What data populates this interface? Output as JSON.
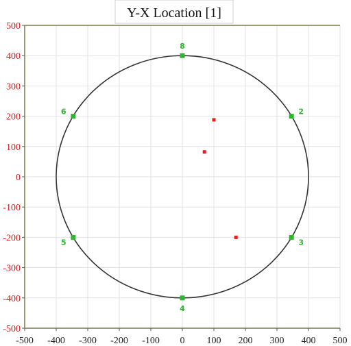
{
  "chart_data": {
    "type": "scatter",
    "title": "Y-X Location [1]",
    "xlabel": "",
    "ylabel": "",
    "xlim": [
      -500,
      500
    ],
    "ylim": [
      -500,
      500
    ],
    "x_ticks": [
      -500,
      -400,
      -300,
      -200,
      -100,
      0,
      100,
      200,
      300,
      400,
      500
    ],
    "y_ticks": [
      -500,
      -400,
      -300,
      -200,
      -100,
      0,
      100,
      200,
      300,
      400,
      500
    ],
    "grid": true,
    "circle": {
      "center": [
        0,
        0
      ],
      "radius": 400,
      "color": "#333333"
    },
    "series": [
      {
        "color": "#2fb52f",
        "points": [
          {
            "label": "8",
            "x": 0,
            "y": 400
          },
          {
            "label": "2",
            "x": 346,
            "y": 200
          },
          {
            "label": "3",
            "x": 346,
            "y": -200
          },
          {
            "label": "4",
            "x": 0,
            "y": -400
          },
          {
            "label": "5",
            "x": -346,
            "y": -200
          },
          {
            "label": "6",
            "x": -346,
            "y": 200
          }
        ]
      },
      {
        "color": "#e02020",
        "points": [
          {
            "x": 100,
            "y": 188
          },
          {
            "x": 70,
            "y": 82
          },
          {
            "x": 170,
            "y": -200
          }
        ]
      }
    ],
    "axis_label_color": "#cc1a1a",
    "x_tick_color": "#222222",
    "axis_color": "#9a9a7a",
    "grid_color": "#e2e2e2"
  }
}
